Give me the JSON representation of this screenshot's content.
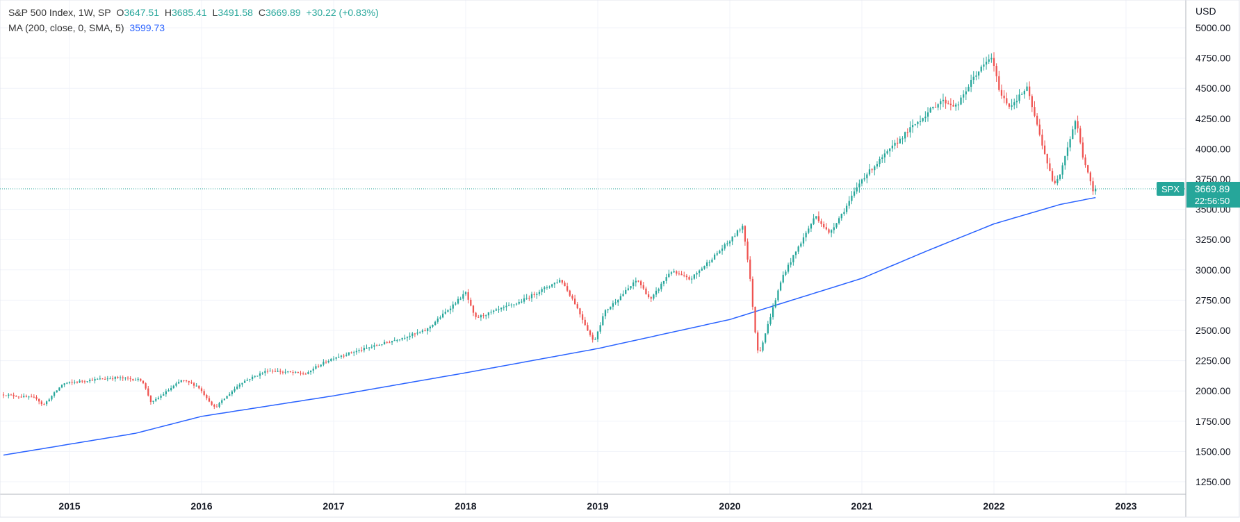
{
  "legend": {
    "symbol": "S&P 500 Index, 1W, SP",
    "open_label": "O",
    "open": "3647.51",
    "high_label": "H",
    "high": "3685.41",
    "low_label": "L",
    "low": "3491.58",
    "close_label": "C",
    "close": "3669.89",
    "change": "+30.22 (+0.83%)",
    "ma_label": "MA (200, close, 0, SMA, 5)",
    "ma_value": "3599.73"
  },
  "currency": "USD",
  "price_tag": {
    "symbol": "SPX",
    "price": "3669.89",
    "countdown": "22:56:50"
  },
  "colors": {
    "up": "#26a69a",
    "down": "#ef5350",
    "ma": "#2962ff",
    "grid": "#f0f3fa",
    "axis_text": "#131722",
    "tag": "#26a69a"
  },
  "chart_data": {
    "type": "candlestick",
    "title": "S&P 500 Index, 1W, SP",
    "interval": "1W",
    "ylabel": "USD",
    "ylim": [
      1100,
      5150
    ],
    "xlim": [
      2014.5,
      2023.5
    ],
    "y_ticks": [
      1250,
      1500,
      1750,
      2000,
      2250,
      2500,
      2750,
      3000,
      3250,
      3500,
      3750,
      4000,
      4250,
      4500,
      4750,
      5000
    ],
    "x_ticks": [
      "2015",
      "2016",
      "2017",
      "2018",
      "2019",
      "2020",
      "2021",
      "2022",
      "2023"
    ],
    "price_anchors": [
      [
        2014.5,
        1970
      ],
      [
        2014.75,
        1940
      ],
      [
        2014.8,
        1880
      ],
      [
        2014.95,
        2060
      ],
      [
        2015.15,
        2090
      ],
      [
        2015.35,
        2110
      ],
      [
        2015.55,
        2090
      ],
      [
        2015.62,
        1900
      ],
      [
        2015.85,
        2090
      ],
      [
        2015.97,
        2040
      ],
      [
        2016.1,
        1860
      ],
      [
        2016.3,
        2070
      ],
      [
        2016.5,
        2170
      ],
      [
        2016.8,
        2140
      ],
      [
        2016.85,
        2190
      ],
      [
        2017.0,
        2275
      ],
      [
        2017.4,
        2400
      ],
      [
        2017.7,
        2500
      ],
      [
        2018.0,
        2810
      ],
      [
        2018.07,
        2600
      ],
      [
        2018.4,
        2730
      ],
      [
        2018.72,
        2920
      ],
      [
        2018.82,
        2740
      ],
      [
        2018.97,
        2400
      ],
      [
        2019.05,
        2650
      ],
      [
        2019.3,
        2920
      ],
      [
        2019.4,
        2750
      ],
      [
        2019.55,
        2990
      ],
      [
        2019.7,
        2920
      ],
      [
        2020.0,
        3240
      ],
      [
        2020.1,
        3370
      ],
      [
        2020.15,
        2960
      ],
      [
        2020.2,
        2400
      ],
      [
        2020.22,
        2300
      ],
      [
        2020.4,
        2950
      ],
      [
        2020.65,
        3450
      ],
      [
        2020.75,
        3300
      ],
      [
        2020.87,
        3500
      ],
      [
        2021.0,
        3750
      ],
      [
        2021.35,
        4150
      ],
      [
        2021.6,
        4400
      ],
      [
        2021.72,
        4350
      ],
      [
        2021.85,
        4600
      ],
      [
        2021.98,
        4760
      ],
      [
        2022.05,
        4450
      ],
      [
        2022.12,
        4350
      ],
      [
        2022.25,
        4500
      ],
      [
        2022.35,
        4100
      ],
      [
        2022.45,
        3700
      ],
      [
        2022.5,
        3800
      ],
      [
        2022.62,
        4250
      ],
      [
        2022.67,
        3950
      ],
      [
        2022.75,
        3650
      ],
      [
        2022.78,
        3670
      ]
    ],
    "ma_anchors": [
      [
        2014.5,
        1470
      ],
      [
        2015.5,
        1650
      ],
      [
        2016.0,
        1790
      ],
      [
        2017.0,
        1960
      ],
      [
        2018.0,
        2150
      ],
      [
        2019.0,
        2350
      ],
      [
        2020.0,
        2590
      ],
      [
        2021.0,
        2930
      ],
      [
        2021.5,
        3160
      ],
      [
        2022.0,
        3380
      ],
      [
        2022.5,
        3540
      ],
      [
        2022.78,
        3600
      ]
    ],
    "current_price": 3669.89,
    "ma_current": 3599.73
  }
}
